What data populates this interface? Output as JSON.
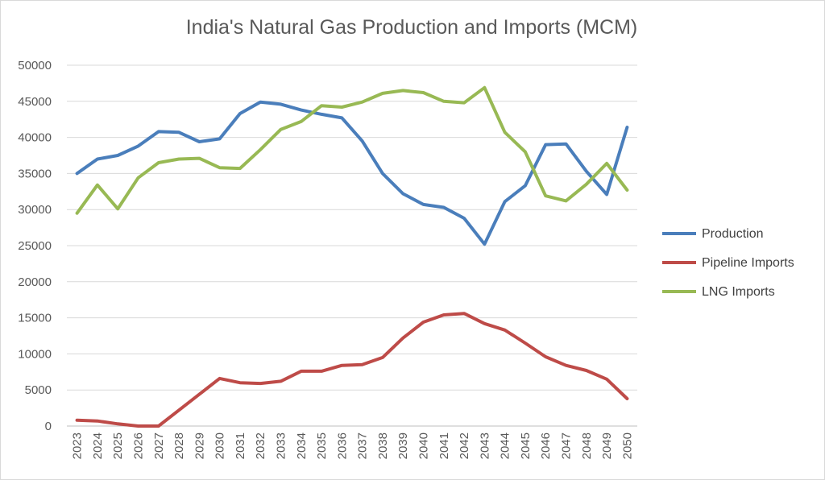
{
  "chart_data": {
    "type": "line",
    "title": "India's Natural Gas Production and Imports (MCM)",
    "x": [
      2023,
      2024,
      2025,
      2026,
      2027,
      2028,
      2029,
      2030,
      2031,
      2032,
      2033,
      2034,
      2035,
      2036,
      2037,
      2038,
      2039,
      2040,
      2041,
      2042,
      2043,
      2044,
      2045,
      2046,
      2047,
      2048,
      2049,
      2050
    ],
    "ylim": [
      0,
      50000
    ],
    "yticks": [
      0,
      5000,
      10000,
      15000,
      20000,
      25000,
      30000,
      35000,
      40000,
      45000,
      50000
    ],
    "grid": true,
    "legend_position": "right",
    "series": [
      {
        "name": "Production",
        "color": "#4a7ebb",
        "values": [
          35000,
          37000,
          37500,
          38800,
          40800,
          40700,
          39400,
          39800,
          43300,
          44900,
          44600,
          43800,
          43200,
          42700,
          39500,
          35000,
          32200,
          30700,
          30300,
          28800,
          25200,
          31100,
          33300,
          39000,
          39100,
          35300,
          32100,
          41400
        ]
      },
      {
        "name": "Pipeline Imports",
        "color": "#be4b48",
        "values": [
          800,
          700,
          300,
          0,
          0,
          2200,
          4400,
          6600,
          6000,
          5900,
          6200,
          7600,
          7600,
          8400,
          8500,
          9500,
          12200,
          14400,
          15400,
          15600,
          14200,
          13300,
          11500,
          9600,
          8400,
          7700,
          6500,
          3800
        ]
      },
      {
        "name": "LNG Imports",
        "color": "#98b954",
        "values": [
          29500,
          33400,
          30100,
          34400,
          36500,
          37000,
          37100,
          35800,
          35700,
          38300,
          41100,
          42200,
          44400,
          44200,
          44900,
          46100,
          46500,
          46200,
          45000,
          44800,
          46900,
          40700,
          38000,
          31900,
          31200,
          33500,
          36400,
          32700
        ]
      }
    ]
  }
}
